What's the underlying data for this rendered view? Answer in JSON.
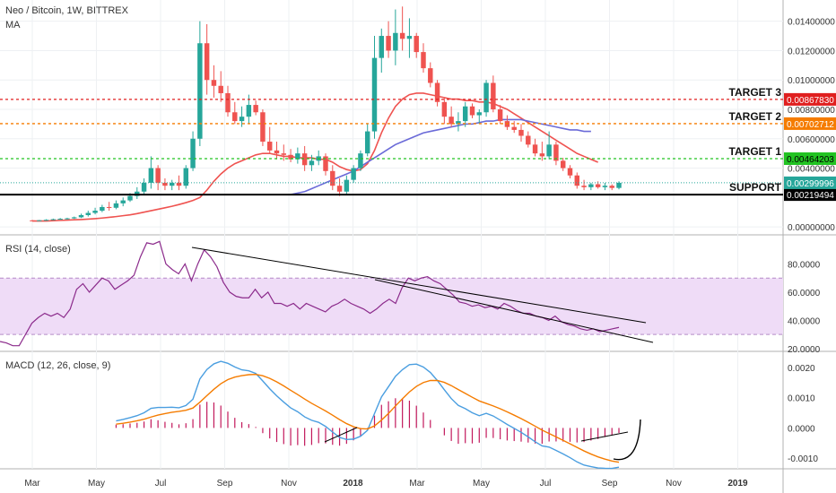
{
  "header": {
    "symbol_title": "Neo / Bitcoin, 1W, BITTREX",
    "indicator": "MA"
  },
  "colors": {
    "up": "#26a69a",
    "down": "#ef5350",
    "ma_red": "#ef5350",
    "ma_blue": "#6a6ad8",
    "target3": "#e01f1f",
    "target2": "#f57c00",
    "target1": "#22c322",
    "support": "#000000",
    "rsi_line": "#8b2a8b",
    "rsi_band": "#efdcf7",
    "macd_line": "#4a9ee0",
    "signal_line": "#f57c00",
    "hist": "#c2185b"
  },
  "x_axis": {
    "labels": [
      "Mar",
      "May",
      "Jul",
      "Sep",
      "Nov",
      "2018",
      "Mar",
      "May",
      "Jul",
      "Sep",
      "Nov",
      "2019"
    ],
    "bold": [
      "2018",
      "2019"
    ]
  },
  "chart_data": [
    {
      "type": "candlestick",
      "title": "Neo / Bitcoin, 1W, BITTREX",
      "ylim": [
        -0.0003,
        0.0152
      ],
      "y_ticks": [
        "0.01400000",
        "0.01200000",
        "0.01000000",
        "0.00800000",
        "0.00600000",
        "0.00400000",
        "0.00000000"
      ],
      "candles": [
        {
          "o": 0.00044,
          "h": 0.00047,
          "l": 0.00041,
          "c": 0.00043
        },
        {
          "o": 0.00043,
          "h": 0.00047,
          "l": 0.0004,
          "c": 0.00045
        },
        {
          "o": 0.00045,
          "h": 0.00052,
          "l": 0.00043,
          "c": 0.00048
        },
        {
          "o": 0.00048,
          "h": 0.00056,
          "l": 0.00046,
          "c": 0.00052
        },
        {
          "o": 0.00052,
          "h": 0.0006,
          "l": 0.0005,
          "c": 0.00055
        },
        {
          "o": 0.00055,
          "h": 0.00062,
          "l": 0.0005,
          "c": 0.00058
        },
        {
          "o": 0.00058,
          "h": 0.0007,
          "l": 0.00054,
          "c": 0.00065
        },
        {
          "o": 0.00065,
          "h": 0.0009,
          "l": 0.0006,
          "c": 0.0008
        },
        {
          "o": 0.0008,
          "h": 0.0011,
          "l": 0.0007,
          "c": 0.00095
        },
        {
          "o": 0.00095,
          "h": 0.0013,
          "l": 0.00085,
          "c": 0.0011
        },
        {
          "o": 0.0011,
          "h": 0.0015,
          "l": 0.001,
          "c": 0.00135
        },
        {
          "o": 0.00135,
          "h": 0.0017,
          "l": 0.0011,
          "c": 0.0013
        },
        {
          "o": 0.0013,
          "h": 0.0018,
          "l": 0.0012,
          "c": 0.0016
        },
        {
          "o": 0.0016,
          "h": 0.002,
          "l": 0.0014,
          "c": 0.0018
        },
        {
          "o": 0.0018,
          "h": 0.0023,
          "l": 0.0017,
          "c": 0.0021
        },
        {
          "o": 0.0021,
          "h": 0.0027,
          "l": 0.0019,
          "c": 0.0024
        },
        {
          "o": 0.0024,
          "h": 0.0033,
          "l": 0.0022,
          "c": 0.003
        },
        {
          "o": 0.003,
          "h": 0.0048,
          "l": 0.0026,
          "c": 0.004
        },
        {
          "o": 0.004,
          "h": 0.0042,
          "l": 0.0025,
          "c": 0.003
        },
        {
          "o": 0.003,
          "h": 0.0033,
          "l": 0.0025,
          "c": 0.0028
        },
        {
          "o": 0.0028,
          "h": 0.0032,
          "l": 0.0025,
          "c": 0.003
        },
        {
          "o": 0.003,
          "h": 0.0035,
          "l": 0.0025,
          "c": 0.0028
        },
        {
          "o": 0.0028,
          "h": 0.0042,
          "l": 0.0026,
          "c": 0.004
        },
        {
          "o": 0.004,
          "h": 0.0065,
          "l": 0.0038,
          "c": 0.006
        },
        {
          "o": 0.006,
          "h": 0.014,
          "l": 0.0055,
          "c": 0.0125
        },
        {
          "o": 0.0125,
          "h": 0.0138,
          "l": 0.009,
          "c": 0.01
        },
        {
          "o": 0.01,
          "h": 0.011,
          "l": 0.0088,
          "c": 0.0096
        },
        {
          "o": 0.0096,
          "h": 0.0106,
          "l": 0.0085,
          "c": 0.0091
        },
        {
          "o": 0.0091,
          "h": 0.0096,
          "l": 0.0075,
          "c": 0.0078
        },
        {
          "o": 0.0078,
          "h": 0.0085,
          "l": 0.007,
          "c": 0.0072
        },
        {
          "o": 0.0072,
          "h": 0.0082,
          "l": 0.0068,
          "c": 0.0075
        },
        {
          "o": 0.0075,
          "h": 0.009,
          "l": 0.007,
          "c": 0.0083
        },
        {
          "o": 0.0083,
          "h": 0.0086,
          "l": 0.0076,
          "c": 0.0078
        },
        {
          "o": 0.0078,
          "h": 0.008,
          "l": 0.0055,
          "c": 0.0058
        },
        {
          "o": 0.0058,
          "h": 0.0068,
          "l": 0.005,
          "c": 0.0052
        },
        {
          "o": 0.0052,
          "h": 0.0058,
          "l": 0.0046,
          "c": 0.005
        },
        {
          "o": 0.005,
          "h": 0.0056,
          "l": 0.0045,
          "c": 0.0049
        },
        {
          "o": 0.0049,
          "h": 0.0053,
          "l": 0.0044,
          "c": 0.0046
        },
        {
          "o": 0.0046,
          "h": 0.0054,
          "l": 0.0043,
          "c": 0.005
        },
        {
          "o": 0.005,
          "h": 0.0055,
          "l": 0.0038,
          "c": 0.0042
        },
        {
          "o": 0.0042,
          "h": 0.0049,
          "l": 0.0038,
          "c": 0.0045
        },
        {
          "o": 0.0045,
          "h": 0.0052,
          "l": 0.0042,
          "c": 0.0048
        },
        {
          "o": 0.0048,
          "h": 0.005,
          "l": 0.0035,
          "c": 0.0038
        },
        {
          "o": 0.0038,
          "h": 0.0042,
          "l": 0.0025,
          "c": 0.0028
        },
        {
          "o": 0.0028,
          "h": 0.0033,
          "l": 0.0021,
          "c": 0.0024
        },
        {
          "o": 0.0024,
          "h": 0.0035,
          "l": 0.0022,
          "c": 0.0032
        },
        {
          "o": 0.0032,
          "h": 0.0042,
          "l": 0.003,
          "c": 0.004
        },
        {
          "o": 0.004,
          "h": 0.0052,
          "l": 0.0038,
          "c": 0.005
        },
        {
          "o": 0.005,
          "h": 0.007,
          "l": 0.0048,
          "c": 0.0065
        },
        {
          "o": 0.0065,
          "h": 0.013,
          "l": 0.006,
          "c": 0.0115
        },
        {
          "o": 0.0115,
          "h": 0.0135,
          "l": 0.0105,
          "c": 0.013
        },
        {
          "o": 0.013,
          "h": 0.014,
          "l": 0.0115,
          "c": 0.012
        },
        {
          "o": 0.012,
          "h": 0.0148,
          "l": 0.011,
          "c": 0.0132
        },
        {
          "o": 0.0132,
          "h": 0.015,
          "l": 0.012,
          "c": 0.0128
        },
        {
          "o": 0.0128,
          "h": 0.0142,
          "l": 0.0115,
          "c": 0.013
        },
        {
          "o": 0.013,
          "h": 0.0132,
          "l": 0.0115,
          "c": 0.0119
        },
        {
          "o": 0.0119,
          "h": 0.0125,
          "l": 0.0105,
          "c": 0.0108
        },
        {
          "o": 0.0108,
          "h": 0.0112,
          "l": 0.0095,
          "c": 0.0098
        },
        {
          "o": 0.0098,
          "h": 0.01,
          "l": 0.0082,
          "c": 0.0085
        },
        {
          "o": 0.0085,
          "h": 0.0088,
          "l": 0.007,
          "c": 0.0075
        },
        {
          "o": 0.0075,
          "h": 0.0082,
          "l": 0.0068,
          "c": 0.007
        },
        {
          "o": 0.007,
          "h": 0.0078,
          "l": 0.0065,
          "c": 0.0072
        },
        {
          "o": 0.0072,
          "h": 0.0085,
          "l": 0.0068,
          "c": 0.0082
        },
        {
          "o": 0.0082,
          "h": 0.0084,
          "l": 0.0074,
          "c": 0.0076
        },
        {
          "o": 0.0076,
          "h": 0.008,
          "l": 0.007,
          "c": 0.0078
        },
        {
          "o": 0.0078,
          "h": 0.01,
          "l": 0.0075,
          "c": 0.0098
        },
        {
          "o": 0.0098,
          "h": 0.0103,
          "l": 0.0078,
          "c": 0.008
        },
        {
          "o": 0.008,
          "h": 0.0083,
          "l": 0.007,
          "c": 0.0072
        },
        {
          "o": 0.0072,
          "h": 0.0076,
          "l": 0.0066,
          "c": 0.0068
        },
        {
          "o": 0.0068,
          "h": 0.0072,
          "l": 0.0064,
          "c": 0.0066
        },
        {
          "o": 0.0066,
          "h": 0.007,
          "l": 0.0058,
          "c": 0.0062
        },
        {
          "o": 0.0062,
          "h": 0.0065,
          "l": 0.0054,
          "c": 0.0056
        },
        {
          "o": 0.0056,
          "h": 0.006,
          "l": 0.0048,
          "c": 0.005
        },
        {
          "o": 0.005,
          "h": 0.0058,
          "l": 0.0045,
          "c": 0.0048
        },
        {
          "o": 0.0048,
          "h": 0.0065,
          "l": 0.0046,
          "c": 0.0056
        },
        {
          "o": 0.0056,
          "h": 0.0058,
          "l": 0.0042,
          "c": 0.0045
        },
        {
          "o": 0.0045,
          "h": 0.0047,
          "l": 0.0038,
          "c": 0.004
        },
        {
          "o": 0.004,
          "h": 0.0042,
          "l": 0.0033,
          "c": 0.0035
        },
        {
          "o": 0.0035,
          "h": 0.0037,
          "l": 0.0026,
          "c": 0.0028
        },
        {
          "o": 0.0028,
          "h": 0.0032,
          "l": 0.0025,
          "c": 0.0027
        },
        {
          "o": 0.0027,
          "h": 0.003,
          "l": 0.0025,
          "c": 0.0029
        },
        {
          "o": 0.0029,
          "h": 0.0031,
          "l": 0.0026,
          "c": 0.0027
        },
        {
          "o": 0.0027,
          "h": 0.003,
          "l": 0.0025,
          "c": 0.0028
        },
        {
          "o": 0.0028,
          "h": 0.0029,
          "l": 0.0025,
          "c": 0.00265
        },
        {
          "o": 0.00265,
          "h": 0.0031,
          "l": 0.00255,
          "c": 0.003
        }
      ],
      "ma_red": [
        0.0004,
        0.0004,
        0.0004,
        0.00042,
        0.00044,
        0.00046,
        0.00048,
        0.0005,
        0.00053,
        0.00056,
        0.0006,
        0.00065,
        0.0007,
        0.00076,
        0.00082,
        0.0009,
        0.001,
        0.0011,
        0.0012,
        0.0013,
        0.0014,
        0.00152,
        0.00165,
        0.0018,
        0.002,
        0.0025,
        0.0031,
        0.0036,
        0.004,
        0.0043,
        0.0045,
        0.0047,
        0.0049,
        0.005,
        0.005,
        0.0049,
        0.0048,
        0.0048,
        0.0047,
        0.0047,
        0.0047,
        0.0046,
        0.0046,
        0.0044,
        0.0041,
        0.0039,
        0.0038,
        0.0039,
        0.0043,
        0.0052,
        0.0064,
        0.0074,
        0.0082,
        0.0087,
        0.009,
        0.0091,
        0.0091,
        0.009,
        0.0089,
        0.0088,
        0.0087,
        0.0087,
        0.0086,
        0.0086,
        0.0085,
        0.0085,
        0.0084,
        0.0082,
        0.008,
        0.0077,
        0.0074,
        0.0071,
        0.0068,
        0.0065,
        0.0062,
        0.0059,
        0.0056,
        0.0053,
        0.005,
        0.0048,
        0.0046,
        0.0044
      ],
      "ma_blue": {
        "start": 37,
        "values": [
          0.0022,
          0.0023,
          0.0024,
          0.0026,
          0.0028,
          0.003,
          0.0032,
          0.0034,
          0.0036,
          0.0038,
          0.0041,
          0.0044,
          0.0047,
          0.005,
          0.0053,
          0.0056,
          0.0058,
          0.006,
          0.0062,
          0.0064,
          0.0065,
          0.0066,
          0.0067,
          0.0068,
          0.0069,
          0.007,
          0.007,
          0.0071,
          0.0072,
          0.0072,
          0.0073,
          0.0073,
          0.0073,
          0.0073,
          0.0072,
          0.0071,
          0.007,
          0.0069,
          0.0068,
          0.0067,
          0.0066,
          0.0066,
          0.0065,
          0.0065
        ]
      },
      "levels": [
        {
          "name": "TARGET 3",
          "label": "0.00867830",
          "value": 0.0086783,
          "color": "#e01f1f",
          "text_color": "#ffffff"
        },
        {
          "name": "TARGET 2",
          "label": "0.00702712",
          "value": 0.00702712,
          "color": "#f57c00",
          "text_color": "#ffffff"
        },
        {
          "name": "TARGET 1",
          "label": "0.00464203",
          "value": 0.00464203,
          "color": "#22c322",
          "text_color": "#000000"
        },
        {
          "name": "SUPPORT",
          "label": "0.00219494",
          "value": 0.00219494,
          "color": "#000000",
          "text_color": "#ffffff"
        }
      ],
      "current_price": {
        "label": "0.00299996",
        "value": 0.00299996,
        "color": "#26a69a"
      }
    },
    {
      "type": "line",
      "title": "RSI (14, close)",
      "ylim": [
        18,
        100
      ],
      "y_ticks": [
        "80.0000",
        "60.0000",
        "40.0000",
        "20.0000"
      ],
      "band": [
        30,
        70
      ],
      "values": [
        25,
        24,
        22,
        22,
        30,
        38,
        42,
        45,
        43,
        45,
        42,
        48,
        62,
        66,
        60,
        65,
        70,
        68,
        62,
        65,
        68,
        72,
        85,
        95,
        94,
        96,
        80,
        76,
        73,
        80,
        68,
        80,
        90,
        85,
        78,
        67,
        60,
        57,
        56,
        56,
        62,
        56,
        60,
        52,
        52,
        50,
        52,
        48,
        52,
        50,
        48,
        46,
        50,
        52,
        55,
        52,
        50,
        48,
        45,
        48,
        52,
        55,
        52,
        63,
        70,
        68,
        70,
        71,
        68,
        66,
        62,
        58,
        53,
        52,
        50,
        51,
        49,
        50,
        48,
        52,
        50,
        47,
        45,
        45,
        43,
        42,
        40,
        43,
        39,
        37,
        36,
        34,
        33,
        34,
        32,
        33,
        34,
        35
      ]
    },
    {
      "type": "line",
      "title": "MACD (12, 26, close, 9)",
      "ylim": [
        -0.00135,
        0.0025
      ],
      "y_ticks": [
        "0.0020",
        "0.0010",
        "0.0000",
        "-0.0010"
      ]
    }
  ]
}
